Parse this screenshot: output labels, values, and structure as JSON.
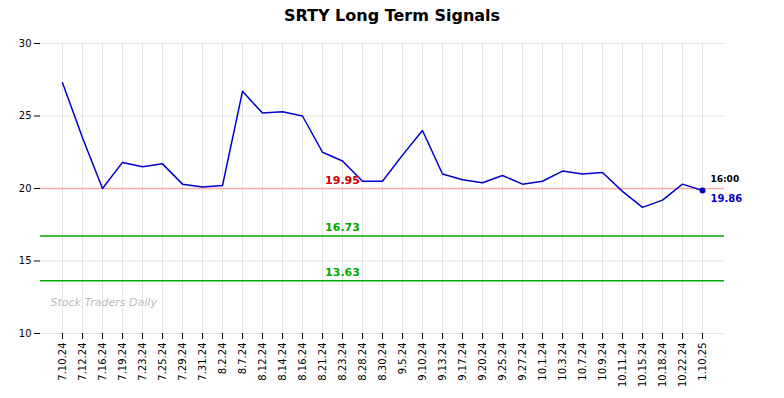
{
  "chart_data": {
    "type": "line",
    "title": "SRTY Long Term Signals",
    "color": "#0000cc",
    "categories": [
      "7.10.24",
      "7.12.24",
      "7.16.24",
      "7.19.24",
      "7.23.24",
      "7.25.24",
      "7.29.24",
      "7.31.24",
      "8.2.24",
      "8.7.24",
      "8.12.24",
      "8.14.24",
      "8.16.24",
      "8.21.24",
      "8.23.24",
      "8.28.24",
      "8.30.24",
      "9.5.24",
      "9.10.24",
      "9.13.24",
      "9.17.24",
      "9.20.24",
      "9.25.24",
      "9.27.24",
      "10.1.24",
      "10.3.24",
      "10.7.24",
      "10.9.24",
      "10.11.24",
      "10.15.24",
      "10.18.24",
      "10.22.24",
      "1.10.25"
    ],
    "values": [
      27.3,
      23.5,
      20.0,
      21.8,
      21.5,
      21.7,
      20.3,
      20.1,
      20.2,
      26.7,
      25.2,
      25.3,
      25.0,
      22.5,
      21.9,
      20.5,
      20.5,
      22.3,
      24.0,
      21.0,
      20.6,
      20.4,
      20.9,
      20.3,
      20.5,
      21.2,
      21.0,
      21.1,
      19.8,
      18.7,
      19.2,
      20.3,
      19.86
    ],
    "ylim": [
      10,
      30
    ],
    "yticks": [
      10,
      15,
      20,
      25,
      30
    ],
    "grid": true,
    "hlines": [
      {
        "value": 20.0,
        "label": "19.95",
        "color": "#ffaaaa",
        "label_color": "#cc0000"
      },
      {
        "value": 16.73,
        "label": "16.73",
        "color": "#00aa00",
        "label_color": "#00aa00"
      },
      {
        "value": 13.63,
        "label": "13.63",
        "color": "#00aa00",
        "label_color": "#00aa00"
      }
    ],
    "annotations": [
      "16:00",
      "19.86"
    ],
    "watermark": "Stock Traders Daily"
  }
}
